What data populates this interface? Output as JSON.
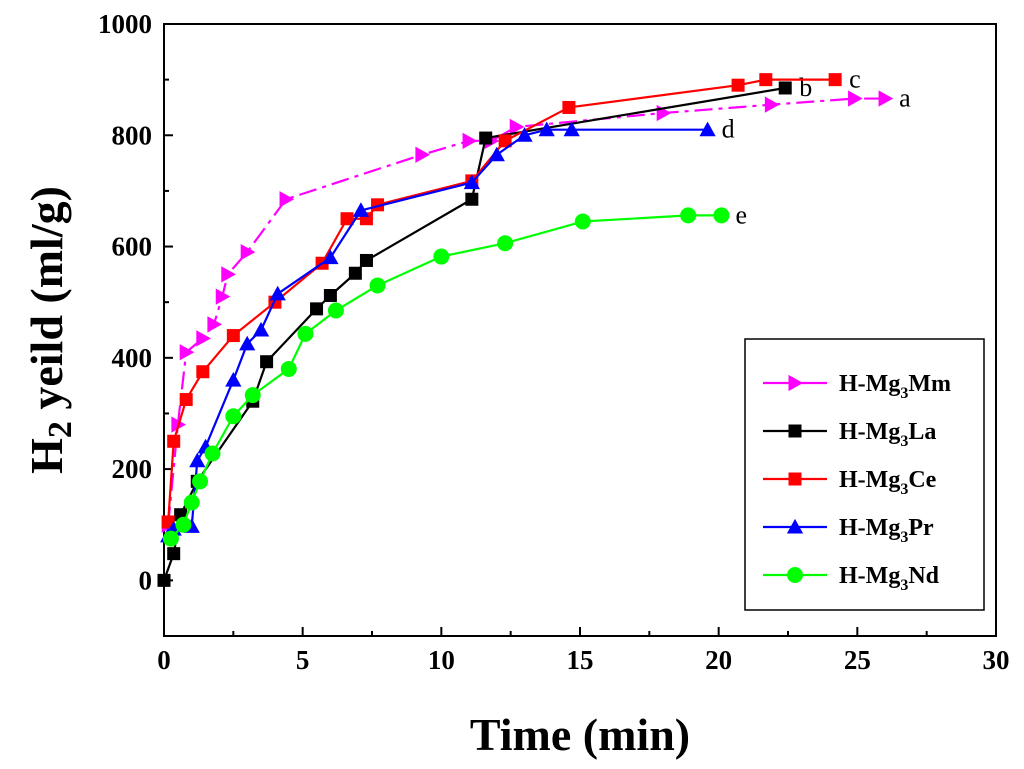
{
  "chart_data": {
    "type": "line",
    "xlabel": "Time (min)",
    "ylabel": {
      "main": "H",
      "sub": "2",
      "rest": " yeild (ml/g)"
    },
    "xlim": [
      0,
      30
    ],
    "ylim": [
      -100,
      1000
    ],
    "xticks": [
      0,
      5,
      10,
      15,
      20,
      25,
      30
    ],
    "yticks": [
      0,
      200,
      400,
      600,
      800,
      1000
    ],
    "legend_position": "bottom-right",
    "series": [
      {
        "name": "H-Mg3Mm",
        "legend": {
          "prefix": "H-Mg",
          "sub": "3",
          "suffix": "Mm"
        },
        "label": "a",
        "color": "#ff00ff",
        "marker": "triangle-right",
        "dash": "dashdot",
        "x": [
          0.15,
          0.5,
          0.8,
          1.4,
          1.8,
          2.1,
          2.3,
          3.0,
          4.4,
          9.3,
          11.0,
          11.8,
          12.7,
          18.0,
          21.9,
          24.9,
          26.0
        ],
        "y": [
          100,
          280,
          410,
          435,
          460,
          510,
          550,
          590,
          685,
          765,
          790,
          790,
          815,
          840,
          855,
          866,
          866
        ]
      },
      {
        "name": "H-Mg3La",
        "legend": {
          "prefix": "H-Mg",
          "sub": "3",
          "suffix": "La"
        },
        "label": "b",
        "color": "#000000",
        "marker": "square",
        "dash": "solid",
        "x": [
          0,
          0.35,
          0.6,
          1.2,
          3.2,
          3.7,
          5.5,
          6.0,
          6.9,
          7.3,
          11.1,
          11.6,
          22.4
        ],
        "y": [
          0,
          48,
          118,
          178,
          322,
          393,
          488,
          512,
          552,
          575,
          685,
          795,
          885
        ]
      },
      {
        "name": "H-Mg3Ce",
        "legend": {
          "prefix": "H-Mg",
          "sub": "3",
          "suffix": "Ce"
        },
        "label": "c",
        "color": "#ff0000",
        "marker": "square",
        "dash": "solid",
        "x": [
          0.15,
          0.35,
          0.8,
          1.4,
          2.5,
          4.0,
          5.7,
          6.6,
          7.3,
          7.7,
          11.1,
          12.3,
          14.6,
          20.7,
          21.7,
          24.2
        ],
        "y": [
          105,
          250,
          325,
          375,
          440,
          500,
          570,
          650,
          650,
          675,
          718,
          790,
          850,
          890,
          900,
          900
        ]
      },
      {
        "name": "H-Mg3Pr",
        "legend": {
          "prefix": "H-Mg",
          "sub": "3",
          "suffix": "Pr"
        },
        "label": "d",
        "color": "#0000ff",
        "marker": "triangle-up",
        "dash": "solid",
        "x": [
          0.15,
          0.35,
          1.0,
          1.2,
          1.5,
          2.5,
          3.0,
          3.5,
          4.1,
          6.0,
          7.1,
          11.1,
          12.0,
          13.0,
          13.8,
          14.7,
          19.6
        ],
        "y": [
          80,
          92,
          97,
          215,
          240,
          360,
          425,
          450,
          515,
          580,
          665,
          715,
          765,
          800,
          810,
          810,
          810
        ]
      },
      {
        "name": "H-Mg3Nd",
        "legend": {
          "prefix": "H-Mg",
          "sub": "3",
          "suffix": "Nd"
        },
        "label": "e",
        "color": "#00ff00",
        "marker": "circle",
        "dash": "solid",
        "x": [
          0.25,
          0.7,
          1.0,
          1.3,
          1.75,
          2.5,
          3.2,
          4.5,
          5.1,
          6.2,
          7.7,
          10.0,
          12.3,
          15.1,
          18.9,
          20.1
        ],
        "y": [
          75,
          100,
          140,
          178,
          228,
          295,
          333,
          380,
          443,
          485,
          530,
          582,
          606,
          645,
          656,
          656
        ]
      }
    ]
  }
}
